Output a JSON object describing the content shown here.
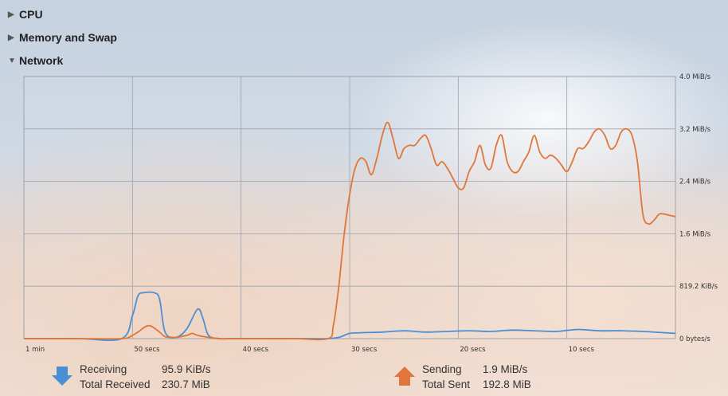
{
  "sections": {
    "cpu": {
      "label": "CPU",
      "expanded": false
    },
    "memory": {
      "label": "Memory and Swap",
      "expanded": false
    },
    "network": {
      "label": "Network",
      "expanded": true
    }
  },
  "chart_data": {
    "type": "line",
    "title": "",
    "xlabel": "",
    "ylabel": "",
    "x_tick_labels": [
      "1 min",
      "50 secs",
      "40 secs",
      "30 secs",
      "20 secs",
      "10 secs"
    ],
    "y_tick_labels": [
      "0 bytes/s",
      "819.2 KiB/s",
      "1.6 MiB/s",
      "2.4 MiB/s",
      "3.2 MiB/s",
      "4.0 MiB/s"
    ],
    "x_unit": "seconds ago",
    "y_unit": "MiB/s",
    "xlim": [
      60,
      0
    ],
    "ylim": [
      0,
      4.0
    ],
    "grid": true,
    "series": [
      {
        "name": "Receiving",
        "color": "#4a8fd6",
        "x": [
          60,
          55,
          51,
          50,
          49.5,
          49,
          48,
          47.5,
          47,
          46,
          45,
          44,
          43.5,
          43,
          42,
          41,
          40,
          38,
          35,
          32,
          31,
          30.5,
          30,
          29,
          27,
          25,
          23,
          21,
          19,
          17,
          15,
          13,
          11,
          9,
          7,
          5,
          3,
          1,
          0
        ],
        "y": [
          0,
          0,
          0,
          0.35,
          0.65,
          0.7,
          0.7,
          0.6,
          0.1,
          0.02,
          0.15,
          0.45,
          0.3,
          0.05,
          0,
          0,
          0,
          0,
          0,
          0,
          0.02,
          0.05,
          0.08,
          0.09,
          0.1,
          0.12,
          0.1,
          0.11,
          0.12,
          0.11,
          0.13,
          0.12,
          0.11,
          0.14,
          0.12,
          0.12,
          0.11,
          0.09,
          0.08
        ]
      },
      {
        "name": "Sending",
        "color": "#e0763a",
        "x": [
          60,
          55,
          51,
          50,
          49.5,
          48.5,
          47.5,
          47,
          46,
          45,
          44.5,
          44,
          43,
          42,
          40,
          38,
          35,
          32,
          31.5,
          31,
          30.5,
          30,
          29.5,
          29,
          28.5,
          28,
          27.5,
          27,
          26.5,
          26,
          25.5,
          25,
          24.5,
          24,
          23.5,
          23,
          22.5,
          22,
          21.5,
          21,
          20.5,
          20,
          19.5,
          19,
          18.5,
          18,
          17.5,
          17,
          16.5,
          16,
          15.5,
          15,
          14.5,
          14,
          13.5,
          13,
          12.5,
          12,
          11.5,
          11,
          10.5,
          10,
          9.5,
          9,
          8.5,
          8,
          7.5,
          7,
          6.5,
          6,
          5.5,
          5,
          4.5,
          4,
          3.5,
          3,
          2.5,
          2,
          1.5,
          1,
          0.5,
          0
        ],
        "y": [
          0,
          0,
          0,
          0.05,
          0.1,
          0.2,
          0.1,
          0.03,
          0.02,
          0.05,
          0.08,
          0.05,
          0.02,
          0,
          0,
          0,
          0,
          0,
          0.2,
          0.8,
          1.6,
          2.2,
          2.6,
          2.75,
          2.7,
          2.5,
          2.75,
          3.1,
          3.3,
          3.05,
          2.75,
          2.9,
          2.95,
          2.95,
          3.05,
          3.1,
          2.9,
          2.65,
          2.7,
          2.6,
          2.45,
          2.3,
          2.3,
          2.55,
          2.7,
          2.95,
          2.65,
          2.6,
          2.95,
          3.1,
          2.7,
          2.55,
          2.55,
          2.7,
          2.85,
          3.1,
          2.85,
          2.75,
          2.8,
          2.75,
          2.65,
          2.55,
          2.7,
          2.9,
          2.9,
          3.0,
          3.15,
          3.2,
          3.1,
          2.9,
          2.95,
          3.15,
          3.2,
          3.1,
          2.7,
          1.9,
          1.75,
          1.8,
          1.9,
          1.9,
          1.88,
          1.86
        ]
      }
    ]
  },
  "legend": {
    "receiving": {
      "label": "Receiving",
      "value": "95.9 KiB/s",
      "total_label": "Total Received",
      "total_value": "230.7 MiB",
      "color": "#4a8fd6",
      "icon": "arrow-down-icon"
    },
    "sending": {
      "label": "Sending",
      "value": "1.9 MiB/s",
      "total_label": "Total Sent",
      "total_value": "192.8 MiB",
      "color": "#e0763a",
      "icon": "arrow-up-icon"
    }
  },
  "colors": {
    "grid": "#9aa3ad",
    "text": "#2d2d2d"
  }
}
